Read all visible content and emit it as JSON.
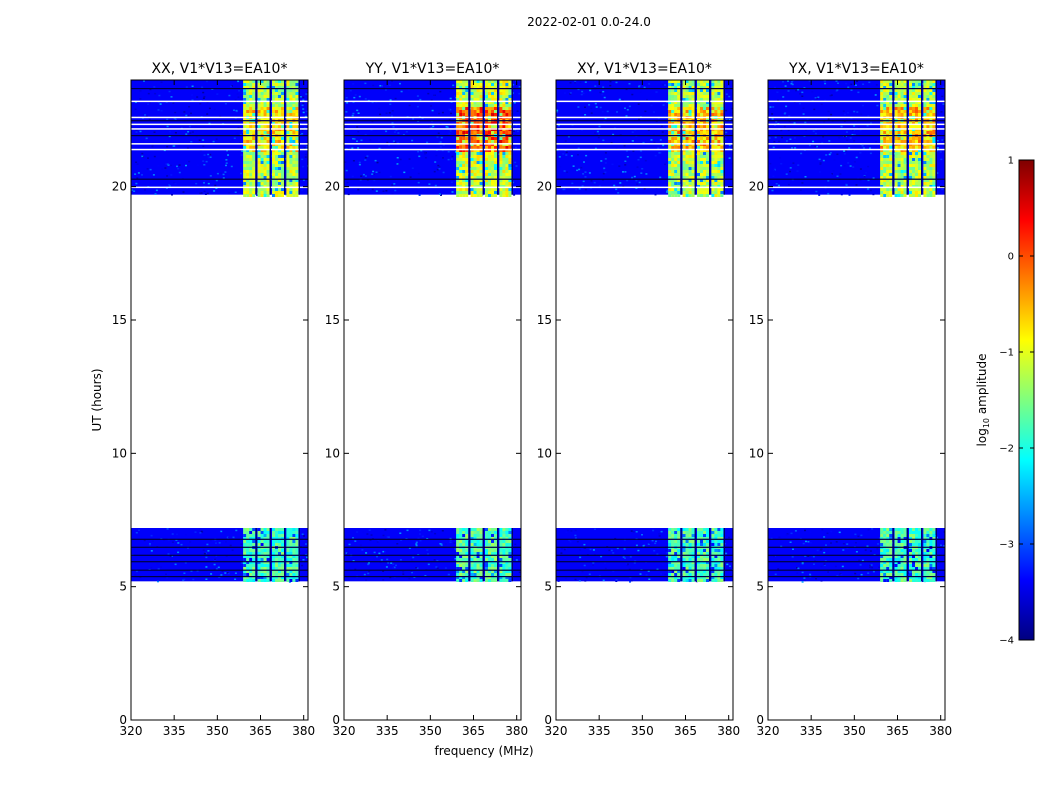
{
  "figure_title": "2022-02-01 0.0-24.0",
  "xlabel": "frequency (MHz)",
  "ylabel": "UT (hours)",
  "colorbar": {
    "label": "log",
    "label_sub": "10",
    "label_rest": " amplitude",
    "ticks": [
      {
        "value": 1,
        "label": "1"
      },
      {
        "value": 0,
        "label": "0"
      },
      {
        "value": -1,
        "label": "−1"
      },
      {
        "value": -2,
        "label": "−2"
      },
      {
        "value": -3,
        "label": "−3"
      },
      {
        "value": -4,
        "label": "−4"
      }
    ],
    "range": [
      -4,
      1
    ],
    "colors": [
      "#00007f",
      "#0000ff",
      "#007fff",
      "#00ffff",
      "#7fff7f",
      "#ffff00",
      "#ff7f00",
      "#ff0000",
      "#7f0000"
    ]
  },
  "chart_data": [
    {
      "type": "heatmap",
      "title": "XX, V1*V13=EA10*",
      "xlim": [
        320,
        381.5
      ],
      "ylim": [
        0,
        24
      ],
      "xticks": [
        {
          "value": 320,
          "label": "320"
        },
        {
          "value": 335,
          "label": "335"
        },
        {
          "value": 350,
          "label": "350"
        },
        {
          "value": 365,
          "label": "365"
        },
        {
          "value": 380,
          "label": "380"
        }
      ],
      "yticks": [
        {
          "value": 0,
          "label": "0"
        },
        {
          "value": 5,
          "label": "5"
        },
        {
          "value": 10,
          "label": "10"
        },
        {
          "value": 15,
          "label": "15"
        },
        {
          "value": 20,
          "label": "20"
        }
      ],
      "data_blocks_ut": [
        [
          5.2,
          7.2
        ],
        [
          19.7,
          24.0
        ]
      ],
      "background_log10_amplitude": -3.4,
      "bright_channels_mhz": [
        [
          359.0,
          363.0
        ],
        [
          364.0,
          367.8
        ],
        [
          369.0,
          372.8
        ],
        [
          374.0,
          378.0
        ]
      ],
      "bright_level_log10_amplitude": -1.2,
      "peak_level_log10_amplitude": -0.6
    },
    {
      "type": "heatmap",
      "title": "YY, V1*V13=EA10*",
      "xlim": [
        320,
        381.5
      ],
      "ylim": [
        0,
        24
      ],
      "xticks": [
        {
          "value": 320,
          "label": "320"
        },
        {
          "value": 335,
          "label": "335"
        },
        {
          "value": 350,
          "label": "350"
        },
        {
          "value": 365,
          "label": "365"
        },
        {
          "value": 380,
          "label": "380"
        }
      ],
      "yticks": [
        {
          "value": 0,
          "label": "0"
        },
        {
          "value": 5,
          "label": "5"
        },
        {
          "value": 10,
          "label": "10"
        },
        {
          "value": 15,
          "label": "15"
        },
        {
          "value": 20,
          "label": "20"
        }
      ],
      "data_blocks_ut": [
        [
          5.2,
          7.2
        ],
        [
          19.7,
          24.0
        ]
      ],
      "background_log10_amplitude": -3.4,
      "bright_channels_mhz": [
        [
          359.0,
          363.0
        ],
        [
          364.0,
          367.8
        ],
        [
          369.0,
          372.8
        ],
        [
          374.0,
          378.0
        ]
      ],
      "bright_level_log10_amplitude": -1.1,
      "peak_level_log10_amplitude": 0.2
    },
    {
      "type": "heatmap",
      "title": "XY, V1*V13=EA10*",
      "xlim": [
        320,
        381.5
      ],
      "ylim": [
        0,
        24
      ],
      "xticks": [
        {
          "value": 320,
          "label": "320"
        },
        {
          "value": 335,
          "label": "335"
        },
        {
          "value": 350,
          "label": "350"
        },
        {
          "value": 365,
          "label": "365"
        },
        {
          "value": 380,
          "label": "380"
        }
      ],
      "yticks": [
        {
          "value": 0,
          "label": "0"
        },
        {
          "value": 5,
          "label": "5"
        },
        {
          "value": 10,
          "label": "10"
        },
        {
          "value": 15,
          "label": "15"
        },
        {
          "value": 20,
          "label": "20"
        }
      ],
      "data_blocks_ut": [
        [
          5.2,
          7.2
        ],
        [
          19.7,
          24.0
        ]
      ],
      "background_log10_amplitude": -3.4,
      "bright_channels_mhz": [
        [
          359.0,
          363.0
        ],
        [
          364.0,
          367.8
        ],
        [
          369.0,
          372.8
        ],
        [
          374.0,
          378.0
        ]
      ],
      "bright_level_log10_amplitude": -1.2,
      "peak_level_log10_amplitude": -0.4
    },
    {
      "type": "heatmap",
      "title": "YX, V1*V13=EA10*",
      "xlim": [
        320,
        381.5
      ],
      "ylim": [
        0,
        24
      ],
      "xticks": [
        {
          "value": 320,
          "label": "320"
        },
        {
          "value": 335,
          "label": "335"
        },
        {
          "value": 350,
          "label": "350"
        },
        {
          "value": 365,
          "label": "365"
        },
        {
          "value": 380,
          "label": "380"
        }
      ],
      "yticks": [
        {
          "value": 0,
          "label": "0"
        },
        {
          "value": 5,
          "label": "5"
        },
        {
          "value": 10,
          "label": "10"
        },
        {
          "value": 15,
          "label": "15"
        },
        {
          "value": 20,
          "label": "20"
        }
      ],
      "data_blocks_ut": [
        [
          5.2,
          7.2
        ],
        [
          19.7,
          24.0
        ]
      ],
      "background_log10_amplitude": -3.4,
      "bright_channels_mhz": [
        [
          359.0,
          363.0
        ],
        [
          364.0,
          367.8
        ],
        [
          369.0,
          372.8
        ],
        [
          374.0,
          378.0
        ]
      ],
      "bright_level_log10_amplitude": -1.2,
      "peak_level_log10_amplitude": -0.4
    }
  ]
}
